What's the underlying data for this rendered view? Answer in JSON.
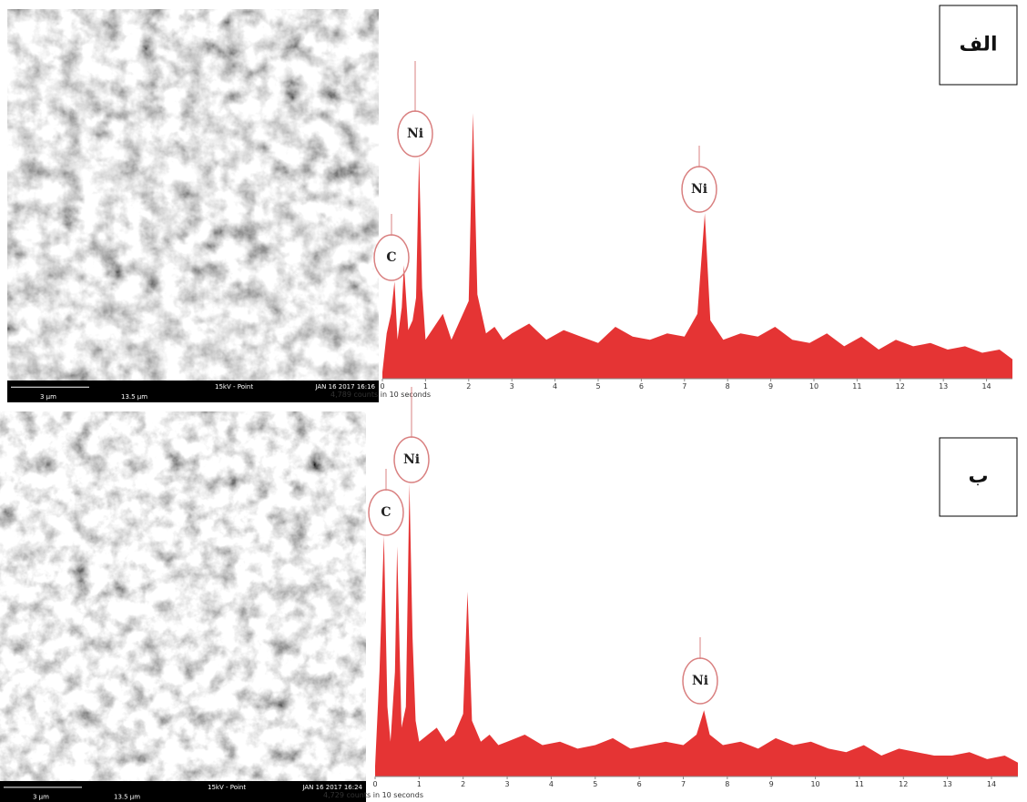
{
  "chart_data": [
    {
      "type": "line",
      "panel_label": "الف",
      "color": "#e01010",
      "annotations": [
        "C",
        "Ni",
        "Ni"
      ],
      "counts_label": "4,789 counts in 10 seconds",
      "x": [
        0,
        0.1,
        0.2,
        0.28,
        0.35,
        0.45,
        0.5,
        0.6,
        0.7,
        0.78,
        0.85,
        0.92,
        1.0,
        1.2,
        1.4,
        1.6,
        1.8,
        2.0,
        2.1,
        2.2,
        2.4,
        2.6,
        2.8,
        3.0,
        3.4,
        3.8,
        4.2,
        4.6,
        5.0,
        5.4,
        5.8,
        6.2,
        6.6,
        7.0,
        7.3,
        7.47,
        7.6,
        7.9,
        8.3,
        8.7,
        9.1,
        9.5,
        9.9,
        10.3,
        10.7,
        11.1,
        11.5,
        11.9,
        12.3,
        12.7,
        13.1,
        13.5,
        13.9,
        14.3,
        14.6
      ],
      "values": [
        2,
        14,
        20,
        30,
        12,
        22,
        35,
        15,
        18,
        25,
        69,
        28,
        12,
        16,
        20,
        12,
        18,
        24,
        82,
        26,
        14,
        16,
        12,
        14,
        17,
        12,
        15,
        13,
        11,
        16,
        13,
        12,
        14,
        13,
        20,
        51,
        18,
        12,
        14,
        13,
        16,
        12,
        11,
        14,
        10,
        13,
        9,
        12,
        10,
        11,
        9,
        10,
        8,
        9,
        6
      ],
      "xlim": [
        0,
        14.6
      ],
      "xticks": [
        0,
        1,
        2,
        3,
        4,
        5,
        6,
        7,
        8,
        9,
        10,
        11,
        12,
        13,
        14
      ],
      "ylim": [
        0,
        100
      ],
      "sem": {
        "scale_bar": "3 µm",
        "mode": "15kV - Point",
        "timestamp": "JAN 16 2017 16:16",
        "field": "13.5 µm"
      }
    },
    {
      "type": "line",
      "panel_label": "ب",
      "color": "#e01010",
      "annotations": [
        "C",
        "Ni",
        "Ni"
      ],
      "counts_label": "4,729 counts in 10 seconds",
      "x": [
        0,
        0.1,
        0.2,
        0.28,
        0.35,
        0.45,
        0.5,
        0.6,
        0.7,
        0.78,
        0.85,
        0.92,
        1.0,
        1.2,
        1.4,
        1.6,
        1.8,
        2.0,
        2.1,
        2.2,
        2.4,
        2.6,
        2.8,
        3.0,
        3.4,
        3.8,
        4.2,
        4.6,
        5.0,
        5.4,
        5.8,
        6.2,
        6.6,
        7.0,
        7.3,
        7.47,
        7.6,
        7.9,
        8.3,
        8.7,
        9.1,
        9.5,
        9.9,
        10.3,
        10.7,
        11.1,
        11.5,
        11.9,
        12.3,
        12.7,
        13.1,
        13.5,
        13.9,
        14.3,
        14.6
      ],
      "values": [
        3,
        30,
        69,
        20,
        10,
        30,
        66,
        14,
        20,
        84,
        40,
        16,
        10,
        12,
        14,
        10,
        12,
        18,
        53,
        16,
        10,
        12,
        9,
        10,
        12,
        9,
        10,
        8,
        9,
        11,
        8,
        9,
        10,
        9,
        12,
        19,
        12,
        9,
        10,
        8,
        11,
        9,
        10,
        8,
        7,
        9,
        6,
        8,
        7,
        6,
        6,
        7,
        5,
        6,
        4
      ],
      "xlim": [
        0,
        14.6
      ],
      "xticks": [
        0,
        1,
        2,
        3,
        4,
        5,
        6,
        7,
        8,
        9,
        10,
        11,
        12,
        13,
        14
      ],
      "ylim": [
        0,
        100
      ],
      "sem": {
        "scale_bar": "3 µm",
        "mode": "15kV - Point",
        "timestamp": "JAN 16 2017 16:24",
        "field": "13.5 µm"
      }
    }
  ]
}
